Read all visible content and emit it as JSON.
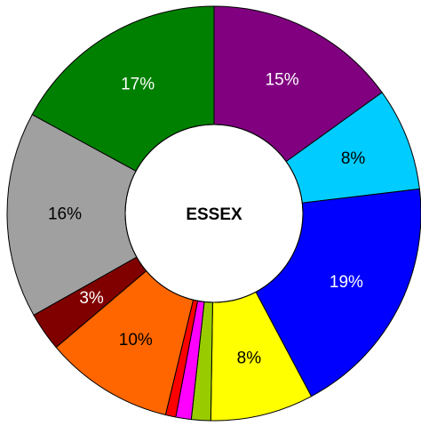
{
  "chart_data": {
    "type": "donut",
    "title": "ESSEX",
    "categories": [
      null,
      null,
      null,
      null,
      null,
      null,
      null,
      null,
      null,
      null,
      null
    ],
    "values": [
      15,
      8,
      19,
      8,
      1.5,
      1.2,
      0.8,
      10,
      3,
      16,
      17
    ],
    "value_labels": [
      "15%",
      "8%",
      "19%",
      "8%",
      null,
      null,
      null,
      "10%",
      "3%",
      "16%",
      "17%"
    ],
    "colors": [
      "#800080",
      "#00ccff",
      "#0000ff",
      "#ffff00",
      "#99cc00",
      "#ff00ff",
      "#ff0000",
      "#ff6600",
      "#800000",
      "#a0a0a0",
      "#008000"
    ],
    "label_colors": [
      "#ffffff",
      "#000000",
      "#ffffff",
      "#000000",
      "#000000",
      "#000000",
      "#000000",
      "#000000",
      "#ffffff",
      "#000000",
      "#ffffff"
    ],
    "start_angle": 0,
    "direction": "clockwise"
  }
}
